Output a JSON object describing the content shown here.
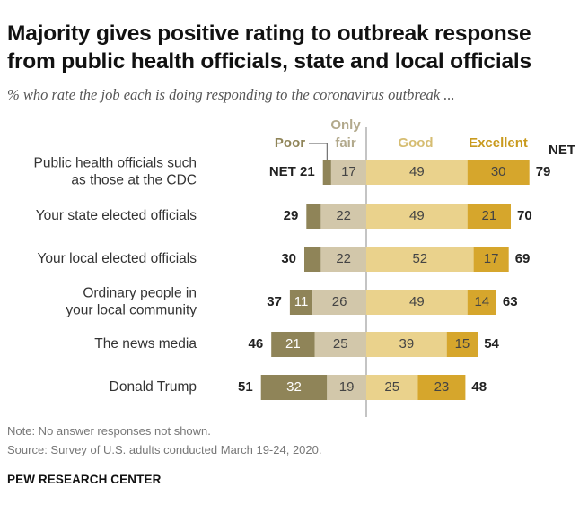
{
  "title": "Majority gives positive rating to outbreak response from public health officials, state and local officials",
  "subtitle": "% who rate the job each is doing responding to the coronavirus outbreak ...",
  "note": "Note: No answer responses not shown.",
  "source": "Source: Survey of U.S. adults conducted March 19-24, 2020.",
  "brand": "PEW RESEARCH CENTER",
  "colors": {
    "poor": "#8f8458",
    "only_fair": "#d2c7aa",
    "good": "#ead28c",
    "excellent": "#d6a62c",
    "divider": "#888888",
    "poor_label": "#8f8458",
    "fair_label": "#b2a98c",
    "good_label": "#d6bd72",
    "excellent_label": "#c99a1e"
  },
  "chart_data": {
    "type": "bar",
    "orientation": "horizontal-diverging",
    "categories": [
      "Public health officials such as those at the CDC",
      "Your state elected officials",
      "Your local elected officials",
      "Ordinary people in your local community",
      "The news media",
      "Donald Trump"
    ],
    "category_lines": [
      [
        "Public health officials such",
        "as those at the CDC"
      ],
      [
        "Your state elected officials"
      ],
      [
        "Your local elected officials"
      ],
      [
        "Ordinary people in",
        "your local community"
      ],
      [
        "The news media"
      ],
      [
        "Donald Trump"
      ]
    ],
    "legend": {
      "poor": "Poor",
      "only_fair_line1": "Only",
      "only_fair_line2": "fair",
      "good": "Good",
      "excellent": "Excellent",
      "net": "NET"
    },
    "net_prefix": "NET",
    "series": [
      {
        "name": "Poor",
        "side": "negative",
        "values": [
          4,
          7,
          8,
          11,
          21,
          32
        ],
        "labels": [
          "",
          "",
          "",
          "11",
          "21",
          "32"
        ]
      },
      {
        "name": "Only fair",
        "side": "negative",
        "values": [
          17,
          22,
          22,
          26,
          25,
          19
        ],
        "labels": [
          "17",
          "22",
          "22",
          "26",
          "25",
          "19"
        ]
      },
      {
        "name": "Good",
        "side": "positive",
        "values": [
          49,
          49,
          52,
          49,
          39,
          25
        ],
        "labels": [
          "49",
          "49",
          "52",
          "49",
          "39",
          "25"
        ]
      },
      {
        "name": "Excellent",
        "side": "positive",
        "values": [
          30,
          21,
          17,
          14,
          15,
          23
        ],
        "labels": [
          "30",
          "21",
          "17",
          "14",
          "15",
          "23"
        ]
      }
    ],
    "net_negative": [
      21,
      29,
      30,
      37,
      46,
      51
    ],
    "net_positive": [
      79,
      70,
      69,
      63,
      54,
      48
    ]
  }
}
